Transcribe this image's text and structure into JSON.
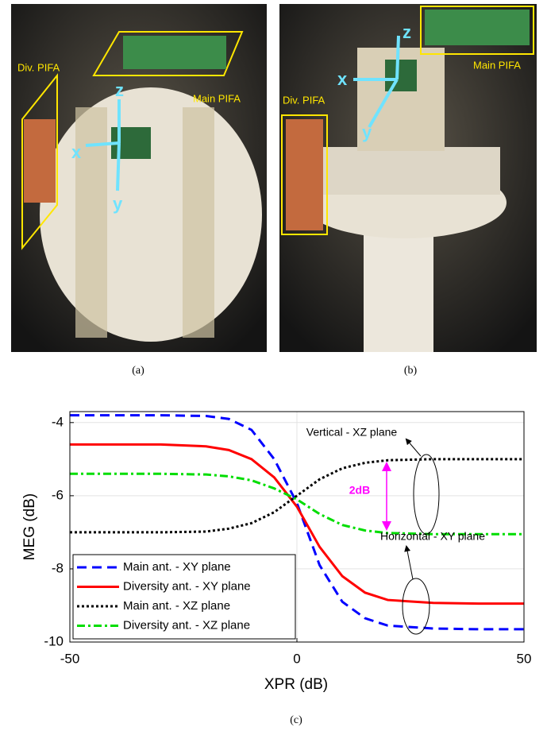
{
  "photos": [
    {
      "caption": "(a)",
      "labels": {
        "div": "Div. PIFA",
        "main": "Main PIFA",
        "x": "x",
        "y": "y",
        "z": "z"
      }
    },
    {
      "caption": "(b)",
      "labels": {
        "div": "Div. PIFA",
        "main": "Main PIFA",
        "x": "x",
        "y": "y",
        "z": "z"
      }
    }
  ],
  "chart_data": {
    "type": "line",
    "caption": "(c)",
    "xlabel": "XPR (dB)",
    "ylabel": "MEG (dB)",
    "x": [
      -50,
      -30,
      -20,
      -15,
      -10,
      -5,
      0,
      5,
      10,
      15,
      20,
      30,
      40,
      50
    ],
    "series": [
      {
        "name": "Main ant. - XY plane",
        "color": "#0000ff",
        "style": "dashed",
        "values": [
          -3.8,
          -3.8,
          -3.82,
          -3.9,
          -4.2,
          -5.0,
          -6.2,
          -7.9,
          -8.9,
          -9.35,
          -9.55,
          -9.63,
          -9.65,
          -9.65
        ]
      },
      {
        "name": "Diversity ant. - XY plane",
        "color": "#ff0000",
        "style": "solid",
        "values": [
          -4.6,
          -4.6,
          -4.65,
          -4.75,
          -5.0,
          -5.5,
          -6.3,
          -7.4,
          -8.2,
          -8.65,
          -8.85,
          -8.93,
          -8.95,
          -8.95
        ]
      },
      {
        "name": "Main ant. - XZ plane",
        "color": "#000000",
        "style": "dotted",
        "values": [
          -7.0,
          -7.0,
          -6.98,
          -6.9,
          -6.75,
          -6.45,
          -6.0,
          -5.55,
          -5.25,
          -5.1,
          -5.03,
          -5.0,
          -5.0,
          -5.0
        ]
      },
      {
        "name": "Diversity ant. - XZ plane",
        "color": "#00dd00",
        "style": "dashdot",
        "values": [
          -5.4,
          -5.4,
          -5.42,
          -5.47,
          -5.58,
          -5.8,
          -6.1,
          -6.5,
          -6.8,
          -6.95,
          -7.02,
          -7.05,
          -7.05,
          -7.05
        ]
      }
    ],
    "xlim": [
      -50,
      50
    ],
    "xticks": [
      -50,
      0,
      50
    ],
    "ylim": [
      -10,
      -3.7
    ],
    "yticks": [
      -10,
      -8,
      -6,
      -4
    ],
    "grid": true,
    "legend": "lower left",
    "annotations": {
      "vertical": "Vertical - XZ plane",
      "gap": "2dB",
      "horizontal": "Horizontal - XY plane"
    }
  }
}
